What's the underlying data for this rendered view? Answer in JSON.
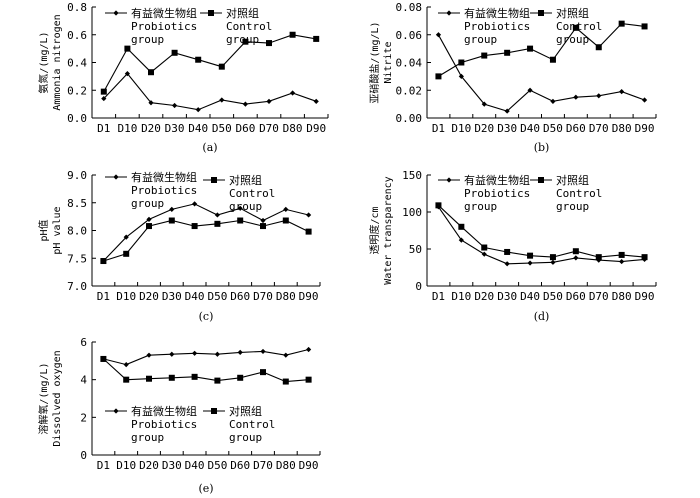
{
  "chart_data": [
    {
      "type": "line",
      "caption": "(a)",
      "ylabel": [
        "氨氮/(mg/L)",
        "Ammonia nitrogen"
      ],
      "categories": [
        "D1",
        "D10",
        "D20",
        "D30",
        "D40",
        "D50",
        "D60",
        "D70",
        "D80",
        "D90"
      ],
      "ylim": [
        0,
        0.8
      ],
      "yticks": [
        0,
        0.2,
        0.4,
        0.6,
        0.8
      ],
      "tick_decimals": 1,
      "legend": {
        "probiotics": [
          "有益微生物组",
          "Probiotics",
          "group"
        ],
        "control": [
          "对照组",
          "Control",
          "group"
        ]
      },
      "series": [
        {
          "name": "Probiotics group",
          "marker": "diamond",
          "values": [
            0.14,
            0.32,
            0.11,
            0.09,
            0.06,
            0.13,
            0.1,
            0.12,
            0.18,
            0.12
          ]
        },
        {
          "name": "Control group",
          "marker": "square",
          "values": [
            0.19,
            0.5,
            0.33,
            0.47,
            0.42,
            0.37,
            0.55,
            0.54,
            0.6,
            0.57
          ]
        }
      ]
    },
    {
      "type": "line",
      "caption": "(b)",
      "ylabel": [
        "亚硝酸盐/(mg/L)",
        "Nitrite"
      ],
      "categories": [
        "D1",
        "D10",
        "D20",
        "D30",
        "D40",
        "D50",
        "D60",
        "D70",
        "D80",
        "D90"
      ],
      "ylim": [
        0,
        0.08
      ],
      "yticks": [
        0,
        0.02,
        0.04,
        0.06,
        0.08
      ],
      "tick_decimals": 2,
      "legend": {
        "probiotics": [
          "有益微生物组",
          "Probiotics",
          "group"
        ],
        "control": [
          "对照组",
          "Control",
          "group"
        ]
      },
      "series": [
        {
          "name": "Probiotics group",
          "marker": "diamond",
          "values": [
            0.06,
            0.03,
            0.01,
            0.005,
            0.02,
            0.012,
            0.015,
            0.016,
            0.019,
            0.013
          ]
        },
        {
          "name": "Control group",
          "marker": "square",
          "values": [
            0.03,
            0.04,
            0.045,
            0.047,
            0.05,
            0.042,
            0.065,
            0.051,
            0.068,
            0.066
          ]
        }
      ]
    },
    {
      "type": "line",
      "caption": "(c)",
      "ylabel": [
        "pH值",
        "pH value"
      ],
      "categories": [
        "D1",
        "D10",
        "D20",
        "D30",
        "D40",
        "D50",
        "D60",
        "D70",
        "D80",
        "D90"
      ],
      "ylim": [
        7.0,
        9.0
      ],
      "yticks": [
        7.0,
        7.5,
        8.0,
        8.5,
        9.0
      ],
      "tick_decimals": 1,
      "legend": {
        "probiotics": [
          "有益微生物组",
          "Probiotics",
          "group"
        ],
        "control": [
          "对照组",
          "Control",
          "group"
        ]
      },
      "series": [
        {
          "name": "Probiotics group",
          "marker": "diamond",
          "values": [
            7.45,
            7.88,
            8.2,
            8.38,
            8.48,
            8.28,
            8.4,
            8.18,
            8.38,
            8.28
          ]
        },
        {
          "name": "Control group",
          "marker": "square",
          "values": [
            7.45,
            7.58,
            8.08,
            8.18,
            8.08,
            8.12,
            8.18,
            8.08,
            8.18,
            7.98
          ]
        }
      ]
    },
    {
      "type": "line",
      "caption": "(d)",
      "ylabel": [
        "透明度/cm",
        "Water transparency"
      ],
      "categories": [
        "D1",
        "D10",
        "D20",
        "D30",
        "D40",
        "D50",
        "D60",
        "D70",
        "D80",
        "D90"
      ],
      "ylim": [
        0,
        150
      ],
      "yticks": [
        0,
        50,
        100,
        150
      ],
      "tick_decimals": 0,
      "legend": {
        "probiotics": [
          "有益微生物组",
          "Probiotics",
          "group"
        ],
        "control": [
          "对照组",
          "Control",
          "group"
        ]
      },
      "series": [
        {
          "name": "Probiotics group",
          "marker": "diamond",
          "values": [
            107,
            62,
            43,
            30,
            31,
            32,
            38,
            35,
            33,
            36
          ]
        },
        {
          "name": "Control group",
          "marker": "square",
          "values": [
            109,
            80,
            52,
            46,
            41,
            39,
            47,
            39,
            42,
            39
          ]
        }
      ]
    },
    {
      "type": "line",
      "caption": "(e)",
      "ylabel": [
        "溶解氧/(mg/L)",
        "Dissolved oxygen"
      ],
      "categories": [
        "D1",
        "D10",
        "D20",
        "D30",
        "D40",
        "D50",
        "D60",
        "D70",
        "D80",
        "D90"
      ],
      "ylim": [
        0,
        6
      ],
      "yticks": [
        0,
        2,
        4,
        6
      ],
      "tick_decimals": 0,
      "legend": {
        "probiotics": [
          "有益微生物组",
          "Probiotics",
          "group"
        ],
        "control": [
          "对照组",
          "Control",
          "group"
        ]
      },
      "series": [
        {
          "name": "Probiotics group",
          "marker": "diamond",
          "values": [
            5.1,
            4.8,
            5.3,
            5.35,
            5.4,
            5.35,
            5.45,
            5.5,
            5.3,
            5.6
          ]
        },
        {
          "name": "Control group",
          "marker": "square",
          "values": [
            5.1,
            4.0,
            4.05,
            4.1,
            4.15,
            3.95,
            4.1,
            4.4,
            3.9,
            4.0
          ]
        }
      ]
    }
  ]
}
